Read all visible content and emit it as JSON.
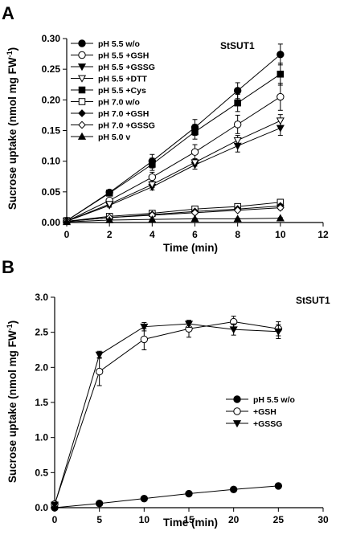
{
  "chart_data": [
    {
      "type": "line",
      "panel": "A",
      "title": "StSUT1",
      "xlabel": "Time (min)",
      "ylabel": "Sucrose uptake (nmol mg FW⁻¹)",
      "xlim": [
        0,
        12
      ],
      "ylim": [
        0,
        0.3
      ],
      "xticks": [
        0,
        2,
        4,
        6,
        8,
        10,
        12
      ],
      "yticks": [
        0.0,
        0.05,
        0.1,
        0.15,
        0.2,
        0.25,
        0.3
      ],
      "ytick_decimals": 2,
      "grid": false,
      "legend_position": "top-left",
      "x": [
        0,
        2,
        4,
        6,
        8,
        10
      ],
      "series": [
        {
          "name": "pH 5.5 w/o",
          "marker": "circle-filled",
          "values": [
            0.003,
            0.049,
            0.1,
            0.155,
            0.215,
            0.274
          ],
          "errors": [
            0.002,
            0.004,
            0.011,
            0.013,
            0.013,
            0.017
          ]
        },
        {
          "name": "pH 5.5 +GSH",
          "marker": "circle-open",
          "values": [
            0.002,
            0.036,
            0.074,
            0.115,
            0.16,
            0.205
          ],
          "errors": [
            0.002,
            0.004,
            0.008,
            0.012,
            0.015,
            0.022
          ]
        },
        {
          "name": "pH 5.5 +GSSG",
          "marker": "triangle-down-filled",
          "values": [
            0.002,
            0.028,
            0.058,
            0.094,
            0.125,
            0.154
          ],
          "errors": [
            0.002,
            0.003,
            0.005,
            0.007,
            0.01,
            0.012
          ]
        },
        {
          "name": "pH 5.5 +DTT",
          "marker": "triangle-down-open",
          "values": [
            0.002,
            0.03,
            0.062,
            0.098,
            0.134,
            0.166
          ],
          "errors": [
            0.002,
            0.003,
            0.005,
            0.006,
            0.008,
            0.01
          ]
        },
        {
          "name": "pH 5.5 +Cys",
          "marker": "square-filled",
          "values": [
            0.003,
            0.048,
            0.095,
            0.148,
            0.195,
            0.242
          ],
          "errors": [
            0.002,
            0.004,
            0.01,
            0.012,
            0.014,
            0.018
          ]
        },
        {
          "name": "pH 7.0 w/o",
          "marker": "square-open",
          "values": [
            0.002,
            0.01,
            0.015,
            0.022,
            0.026,
            0.033
          ],
          "errors": [
            0.001,
            0.002,
            0.002,
            0.002,
            0.003,
            0.003
          ]
        },
        {
          "name": "pH 7.0 +GSH",
          "marker": "diamond-filled",
          "values": [
            0.002,
            0.008,
            0.013,
            0.018,
            0.022,
            0.027
          ],
          "errors": [
            0.001,
            0.001,
            0.002,
            0.002,
            0.002,
            0.003
          ]
        },
        {
          "name": "pH 7.0 +GSSG",
          "marker": "diamond-open",
          "values": [
            0.002,
            0.008,
            0.012,
            0.016,
            0.02,
            0.024
          ],
          "errors": [
            0.001,
            0.001,
            0.002,
            0.002,
            0.002,
            0.003
          ]
        },
        {
          "name": "pH 5.0 v",
          "marker": "triangle-up-filled",
          "values": [
            0.001,
            0.004,
            0.005,
            0.006,
            0.006,
            0.007
          ],
          "errors": [
            0.001,
            0.001,
            0.001,
            0.001,
            0.001,
            0.001
          ]
        }
      ]
    },
    {
      "type": "line",
      "panel": "B",
      "title": "StSUT1",
      "xlabel": "Time (min)",
      "ylabel": "Sucrose uptake (nmol mg FW⁻¹)",
      "xlim": [
        0,
        30
      ],
      "ylim": [
        0,
        3.0
      ],
      "xticks": [
        0,
        5,
        10,
        15,
        20,
        25,
        30
      ],
      "yticks": [
        0.0,
        0.5,
        1.0,
        1.5,
        2.0,
        2.5,
        3.0
      ],
      "ytick_decimals": 1,
      "grid": false,
      "legend_position": "right",
      "x": [
        0,
        5,
        10,
        15,
        20,
        25
      ],
      "series": [
        {
          "name": "pH 5.5 w/o",
          "marker": "circle-filled",
          "values": [
            0.0,
            0.06,
            0.13,
            0.2,
            0.26,
            0.31
          ],
          "errors": [
            0.01,
            0.01,
            0.01,
            0.01,
            0.02,
            0.03
          ]
        },
        {
          "name": "+GSH",
          "marker": "circle-open",
          "values": [
            0.05,
            1.94,
            2.4,
            2.55,
            2.65,
            2.55
          ],
          "errors": [
            0.02,
            0.2,
            0.15,
            0.12,
            0.08,
            0.1
          ]
        },
        {
          "name": "+GSSG",
          "marker": "triangle-down-filled",
          "values": [
            0.04,
            2.18,
            2.58,
            2.62,
            2.54,
            2.51
          ],
          "errors": [
            0.02,
            0.05,
            0.06,
            0.05,
            0.08,
            0.1
          ]
        }
      ]
    }
  ]
}
